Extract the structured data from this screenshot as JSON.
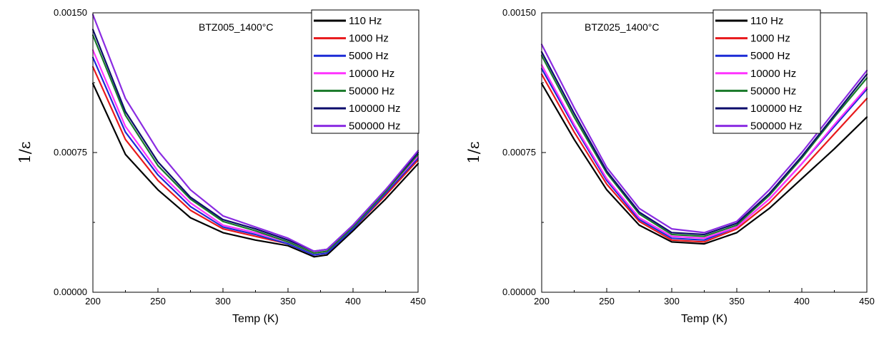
{
  "chart_data": [
    {
      "type": "line",
      "annotation": "BTZ005_1400°C",
      "xlabel": "Temp (K)",
      "ylabel": "1/ε",
      "xlim": [
        200,
        450
      ],
      "ylim": [
        0,
        0.0015
      ],
      "xticks": [
        200,
        250,
        300,
        350,
        400,
        450
      ],
      "xtick_labels": [
        "200",
        "250",
        "300",
        "350",
        "400",
        "450"
      ],
      "yticks": [
        0,
        0.00075,
        0.0015
      ],
      "ytick_labels": [
        "0.00000",
        "0.00075",
        "0.00150"
      ],
      "legend_position": "top-right",
      "x": [
        200,
        225,
        250,
        275,
        300,
        325,
        350,
        370,
        380,
        400,
        425,
        450
      ],
      "series": [
        {
          "name": "110 Hz",
          "color": "#000000",
          "values": [
            0.00112,
            0.00074,
            0.00055,
            0.0004,
            0.00032,
            0.00028,
            0.00025,
            0.00019,
            0.0002,
            0.00033,
            0.0005,
            0.00069
          ]
        },
        {
          "name": "1000 Hz",
          "color": "#e8191c",
          "values": [
            0.00121,
            0.00082,
            0.0006,
            0.00044,
            0.00034,
            0.0003,
            0.00026,
            0.0002,
            0.00021,
            0.00034,
            0.00052,
            0.00071
          ]
        },
        {
          "name": "5000 Hz",
          "color": "#1c2bd6",
          "values": [
            0.00126,
            0.00086,
            0.00063,
            0.00046,
            0.00035,
            0.00031,
            0.00026,
            0.0002,
            0.00021,
            0.00034,
            0.00053,
            0.00072
          ]
        },
        {
          "name": "10000 Hz",
          "color": "#ff33ff",
          "values": [
            0.0013,
            0.00089,
            0.00065,
            0.00048,
            0.00036,
            0.00032,
            0.00027,
            0.00021,
            0.00022,
            0.00035,
            0.00054,
            0.00073
          ]
        },
        {
          "name": "50000 Hz",
          "color": "#1a7a2a",
          "values": [
            0.00138,
            0.00095,
            0.00068,
            0.0005,
            0.00038,
            0.00033,
            0.00027,
            0.00021,
            0.00022,
            0.00035,
            0.00054,
            0.00074
          ]
        },
        {
          "name": "100000 Hz",
          "color": "#0c0c6b",
          "values": [
            0.00141,
            0.00097,
            0.0007,
            0.00051,
            0.00039,
            0.00034,
            0.00028,
            0.00022,
            0.00023,
            0.00036,
            0.00055,
            0.00075
          ]
        },
        {
          "name": "500000 Hz",
          "color": "#8a2be2",
          "values": [
            0.00149,
            0.00104,
            0.00076,
            0.00055,
            0.00041,
            0.00035,
            0.00029,
            0.00022,
            0.00023,
            0.00036,
            0.00055,
            0.00076
          ]
        }
      ]
    },
    {
      "type": "line",
      "annotation": "BTZ025_1400°C",
      "xlabel": "Temp (K)",
      "ylabel": "1/ε",
      "xlim": [
        200,
        450
      ],
      "ylim": [
        0,
        0.0015
      ],
      "xticks": [
        200,
        250,
        300,
        350,
        400,
        450
      ],
      "xtick_labels": [
        "200",
        "250",
        "300",
        "350",
        "400",
        "450"
      ],
      "yticks": [
        0,
        0.00075,
        0.0015
      ],
      "ytick_labels": [
        "0.00000",
        "0.00075",
        "0.00150"
      ],
      "legend_position": "top-right",
      "x": [
        200,
        225,
        250,
        275,
        300,
        325,
        350,
        375,
        400,
        425,
        450
      ],
      "series": [
        {
          "name": "110 Hz",
          "color": "#000000",
          "values": [
            0.00112,
            0.00082,
            0.00055,
            0.00036,
            0.00027,
            0.00026,
            0.00032,
            0.00045,
            0.00061,
            0.00077,
            0.00094
          ]
        },
        {
          "name": "1000 Hz",
          "color": "#e8191c",
          "values": [
            0.00117,
            0.00086,
            0.00058,
            0.00038,
            0.00028,
            0.00027,
            0.00034,
            0.00048,
            0.00066,
            0.00085,
            0.00104
          ]
        },
        {
          "name": "5000 Hz",
          "color": "#1c2bd6",
          "values": [
            0.0012,
            0.00089,
            0.0006,
            0.00039,
            0.00029,
            0.00028,
            0.00035,
            0.0005,
            0.00069,
            0.00089,
            0.00109
          ]
        },
        {
          "name": "10000 Hz",
          "color": "#ff33ff",
          "values": [
            0.00122,
            0.0009,
            0.00061,
            0.0004,
            0.0003,
            0.00029,
            0.00035,
            0.0005,
            0.00069,
            0.0009,
            0.0011
          ]
        },
        {
          "name": "50000 Hz",
          "color": "#1a7a2a",
          "values": [
            0.00127,
            0.00094,
            0.00064,
            0.00042,
            0.00031,
            0.0003,
            0.00036,
            0.00052,
            0.00072,
            0.00094,
            0.00115
          ]
        },
        {
          "name": "100000 Hz",
          "color": "#0c0c6b",
          "values": [
            0.00129,
            0.00096,
            0.00065,
            0.00043,
            0.00032,
            0.00031,
            0.00037,
            0.00053,
            0.00073,
            0.00095,
            0.00117
          ]
        },
        {
          "name": "500000 Hz",
          "color": "#8a2be2",
          "values": [
            0.00133,
            0.00099,
            0.00067,
            0.00045,
            0.00034,
            0.00032,
            0.00038,
            0.00055,
            0.00075,
            0.00097,
            0.00119
          ]
        }
      ]
    }
  ]
}
